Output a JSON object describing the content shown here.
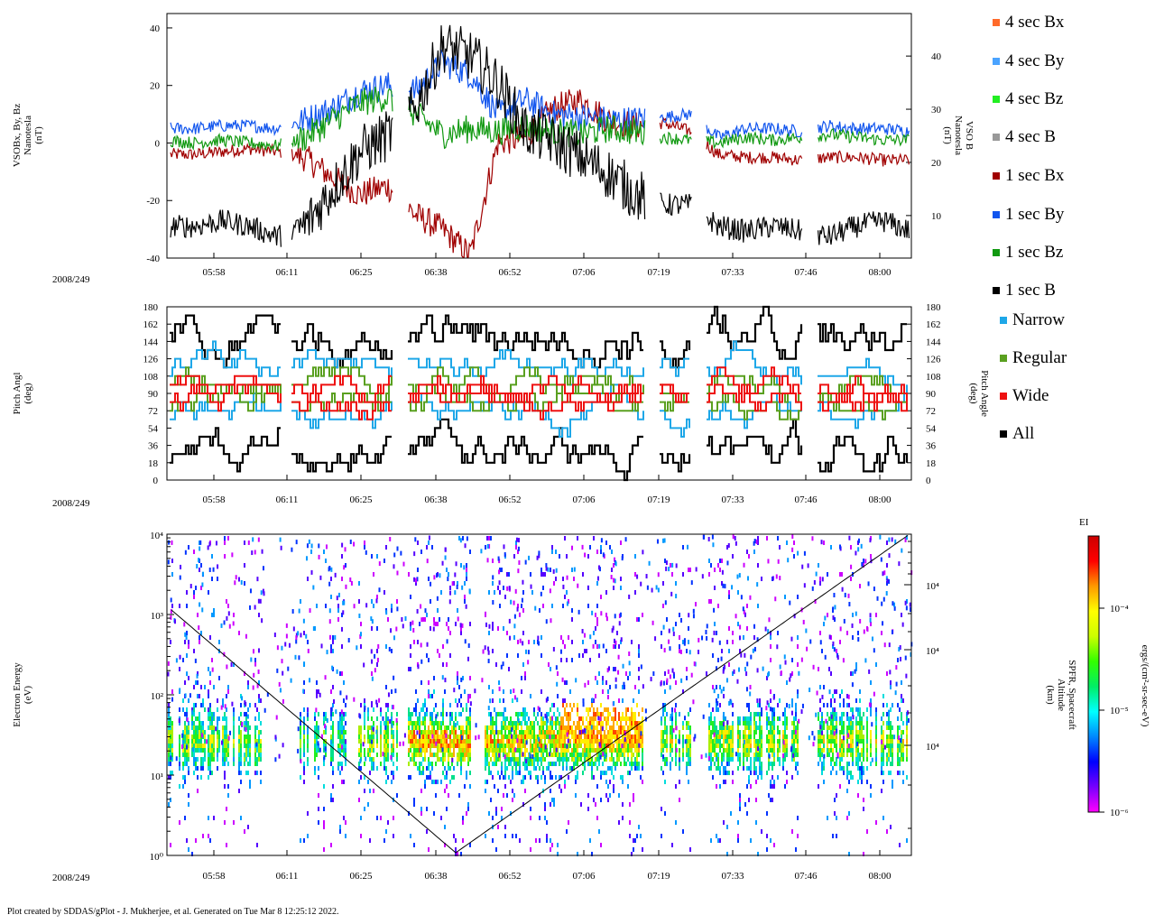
{
  "date_label": "2008/249",
  "footer": "Plot created by SDDAS/gPlot - J. Mukherjee, et al.  Generated on Tue Mar 8 12:25:12 2022.",
  "time_ticks": [
    "05:58",
    "06:11",
    "06:25",
    "06:38",
    "06:52",
    "07:06",
    "07:19",
    "07:33",
    "07:46",
    "08:00"
  ],
  "legend": [
    {
      "label": "4 sec Bx",
      "color": "#ff6a2a"
    },
    {
      "label": "4 sec By",
      "color": "#4aa3ff"
    },
    {
      "label": "4 sec Bz",
      "color": "#22ee22"
    },
    {
      "label": "4 sec B",
      "color": "#999999"
    },
    {
      "label": "1 sec Bx",
      "color": "#a00000"
    },
    {
      "label": "1 sec By",
      "color": "#1155ee"
    },
    {
      "label": "1 sec Bz",
      "color": "#119911"
    },
    {
      "label": "1 sec B",
      "color": "#000000"
    },
    {
      "label": "Narrow",
      "color": "#1ea7e8"
    },
    {
      "label": "Regular",
      "color": "#5aa020"
    },
    {
      "label": "Wide",
      "color": "#ee1111"
    },
    {
      "label": "All",
      "color": "#000000"
    }
  ],
  "chart_data": [
    {
      "type": "line",
      "title": "",
      "ylabel_left": [
        "VSOBx, By, Bz",
        "Nanotesla",
        "(nT)"
      ],
      "ylabel_right": [
        "VSO B",
        "Nanotesla",
        "(nT)"
      ],
      "ylim": [
        -40,
        45
      ],
      "yticks": [
        "40",
        "20",
        "0",
        "-20",
        "-40"
      ],
      "yticks_right": [
        "40",
        "30",
        "20",
        "10"
      ],
      "series": [
        {
          "name": "1 sec Bx",
          "values": [
            -4,
            -4,
            -3,
            -2,
            -3,
            -5,
            -12,
            -18,
            -15,
            -25,
            -30,
            -39,
            0,
            2,
            12,
            15,
            8,
            6,
            7,
            4,
            -4,
            -5,
            -5,
            -6,
            -5,
            -5,
            -6,
            -6
          ]
        },
        {
          "name": "1 sec By",
          "values": [
            5,
            5,
            6,
            6,
            5,
            8,
            12,
            18,
            20,
            18,
            28,
            24,
            10,
            15,
            10,
            9,
            8,
            8,
            9,
            10,
            2,
            5,
            5,
            4,
            6,
            5,
            5,
            4
          ]
        },
        {
          "name": "1 sec Bz",
          "values": [
            1,
            0,
            1,
            0,
            -1,
            2,
            8,
            14,
            16,
            10,
            3,
            5,
            4,
            6,
            4,
            3,
            5,
            4,
            2,
            1,
            0,
            2,
            1,
            2,
            3,
            2,
            1,
            1
          ]
        },
        {
          "name": "1 sec B",
          "values": [
            8,
            8,
            9,
            8,
            6,
            8,
            15,
            22,
            25,
            30,
            42,
            40,
            35,
            26,
            24,
            21,
            18,
            14,
            12,
            12,
            8,
            7,
            8,
            7,
            6,
            8,
            9,
            7
          ]
        }
      ]
    },
    {
      "type": "heatmap",
      "ylabel_left": [
        "Pitch Angl",
        "(deg)"
      ],
      "ylabel_right": [
        "Pitch Angle",
        "(deg)"
      ],
      "ylim": [
        0,
        180
      ],
      "yticks": [
        "180",
        "162",
        "144",
        "126",
        "108",
        "90",
        "72",
        "54",
        "36",
        "18",
        "0"
      ]
    },
    {
      "type": "heatmap",
      "ylabel_left": [
        "Electron Energy",
        "(eV)"
      ],
      "ylabel_right": [
        "SPFR, Spacecraft",
        "Altitude",
        "(km)"
      ],
      "ylim": [
        1,
        10000
      ],
      "yscale": "log",
      "yticks": [
        "10⁴",
        "10³",
        "10²",
        "10¹",
        "10⁰"
      ],
      "yticks_right": [
        "10⁴",
        "10⁴",
        "10⁴"
      ],
      "colorbar": {
        "title": "EI",
        "label": "ergs/(cm²-sr-sec-eV)",
        "ticks": [
          "10⁻⁴",
          "10⁻⁵",
          "10⁻⁶"
        ]
      }
    }
  ]
}
